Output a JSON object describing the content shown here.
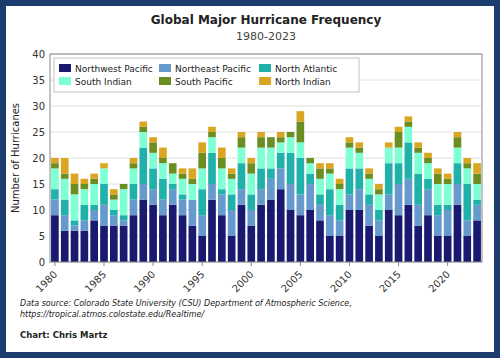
{
  "chart_data": {
    "type": "bar",
    "stacked": true,
    "title": "Global Major Hurricane Frequency",
    "subtitle": "1980-2023",
    "y_label": "Number of Hurricanes",
    "annotations": [
      "Data source: Colorado State University (CSU) Department of Atmospheric Science,\nhttps://tropical.atmos.colostate.edu/Realtime/",
      "Chart: Chris Martz"
    ],
    "categories": [
      "1980",
      null,
      null,
      null,
      null,
      "1985",
      null,
      null,
      null,
      null,
      "1990",
      null,
      null,
      null,
      null,
      "1995",
      null,
      null,
      null,
      null,
      "2000",
      null,
      null,
      null,
      null,
      "2005",
      null,
      null,
      null,
      null,
      "2010",
      null,
      null,
      null,
      null,
      "2015",
      null,
      null,
      null,
      null,
      "2020",
      null,
      null,
      null
    ],
    "series": [
      {
        "name": "Northwest Pacific",
        "color": "#191970",
        "values": [
          9,
          6,
          6,
          6,
          8,
          7,
          7,
          7,
          9,
          12,
          11,
          9,
          11,
          9,
          7,
          5,
          12,
          9,
          5,
          11,
          7,
          11,
          12,
          14,
          10,
          9,
          10,
          8,
          5,
          5,
          10,
          10,
          7,
          5,
          10,
          9,
          11,
          7,
          9,
          5,
          5,
          11,
          5,
          8
        ]
      },
      {
        "name": "Northeast Pacific",
        "color": "#6699cc",
        "values": [
          3,
          3,
          1,
          2,
          2,
          4,
          2,
          1,
          3,
          3,
          3,
          3,
          3,
          3,
          5,
          4,
          3,
          4,
          5,
          3,
          3,
          3,
          4,
          4,
          5,
          4,
          5,
          3,
          4,
          3,
          3,
          4,
          4,
          3,
          3,
          6,
          5,
          4,
          5,
          4,
          5,
          4,
          3,
          3
        ]
      },
      {
        "name": "North Atlantic",
        "color": "#20b2aa",
        "values": [
          2,
          3,
          1,
          3,
          1,
          4,
          1,
          1,
          3,
          7,
          4,
          4,
          1,
          1,
          0,
          5,
          6,
          1,
          3,
          5,
          3,
          4,
          2,
          3,
          6,
          7,
          2,
          2,
          5,
          3,
          5,
          4,
          2,
          2,
          6,
          4,
          7,
          6,
          2,
          2,
          1,
          4,
          7,
          1
        ]
      },
      {
        "name": "South Indian",
        "color": "#7fffd4",
        "values": [
          4,
          4,
          5,
          3,
          4,
          3,
          2,
          5,
          3,
          3,
          3,
          3,
          2,
          3,
          3,
          4,
          3,
          4,
          3,
          3,
          4,
          4,
          4,
          2,
          3,
          3,
          2,
          3,
          3,
          3,
          4,
          3,
          3,
          3,
          3,
          3,
          3,
          4,
          3,
          4,
          4,
          3,
          3,
          3
        ]
      },
      {
        "name": "South Pacific",
        "color": "#6b8e23",
        "values": [
          1,
          1,
          2,
          1,
          1,
          0,
          1,
          1,
          1,
          1,
          2,
          1,
          2,
          1,
          1,
          3,
          1,
          2,
          1,
          2,
          2,
          2,
          2,
          1,
          1,
          4,
          1,
          2,
          1,
          1,
          1,
          1,
          1,
          1,
          0,
          3,
          1,
          1,
          1,
          2,
          1,
          2,
          1,
          2
        ]
      },
      {
        "name": "North Indian",
        "color": "#daa520",
        "values": [
          1,
          3,
          2,
          1,
          1,
          1,
          1,
          0,
          1,
          1,
          1,
          2,
          0,
          1,
          2,
          2,
          1,
          2,
          1,
          1,
          1,
          1,
          0,
          1,
          0,
          2,
          0,
          1,
          1,
          1,
          1,
          1,
          1,
          1,
          1,
          1,
          1,
          1,
          1,
          1,
          1,
          1,
          1,
          2
        ]
      }
    ],
    "ylim": [
      0,
      40
    ],
    "yticks": [
      0,
      5,
      10,
      15,
      20,
      25,
      30,
      35,
      40
    ],
    "grid": true,
    "legend": "upper left"
  }
}
